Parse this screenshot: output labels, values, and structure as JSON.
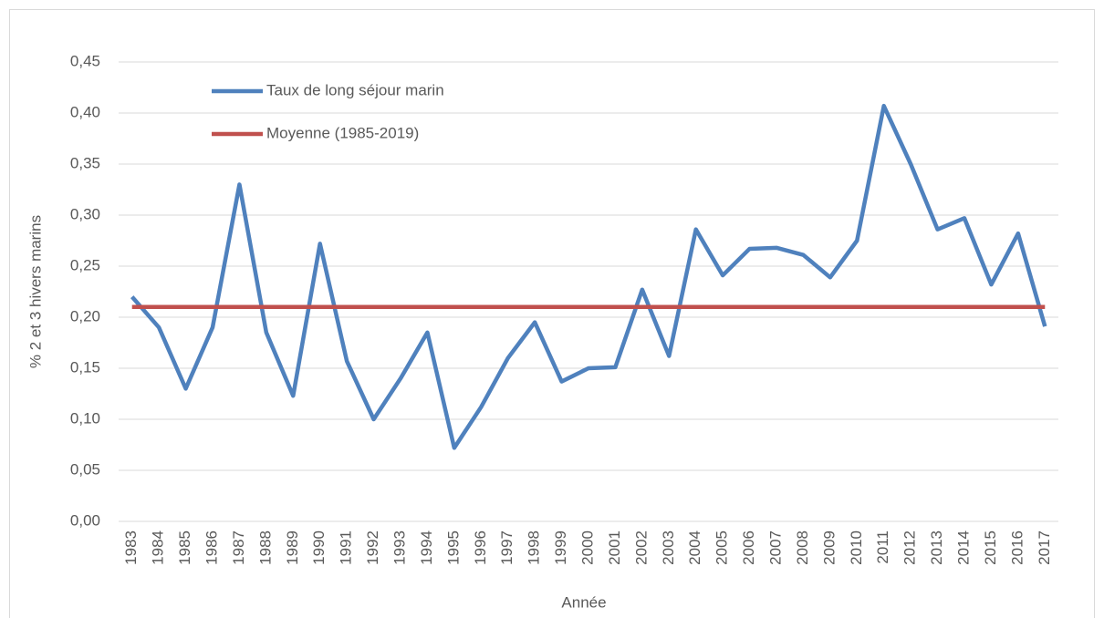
{
  "chart_data": {
    "type": "line",
    "y_label": "% 2 et 3 hivers marins",
    "x_label": "Année",
    "categories": [
      "1983",
      "1984",
      "1985",
      "1986",
      "1987",
      "1988",
      "1989",
      "1990",
      "1991",
      "1992",
      "1993",
      "1994",
      "1995",
      "1996",
      "1997",
      "1998",
      "1999",
      "2000",
      "2001",
      "2002",
      "2003",
      "2004",
      "2005",
      "2006",
      "2007",
      "2008",
      "2009",
      "2010",
      "2011",
      "2012",
      "2013",
      "2014",
      "2015",
      "2016",
      "2017"
    ],
    "series": [
      {
        "name": "Taux de long séjour marin",
        "color": "#4f81bd",
        "values": [
          0.22,
          0.19,
          0.13,
          0.19,
          0.33,
          0.185,
          0.123,
          0.272,
          0.157,
          0.1,
          0.14,
          0.185,
          0.072,
          0.112,
          0.16,
          0.195,
          0.137,
          0.15,
          0.151,
          0.227,
          0.162,
          0.286,
          0.241,
          0.267,
          0.268,
          0.261,
          0.239,
          0.275,
          0.407,
          0.35,
          0.286,
          0.297,
          0.232,
          0.282,
          0.191
        ]
      },
      {
        "name": "Moyenne (1985-2019)",
        "color": "#c0504d",
        "values": [
          0.21,
          0.21,
          0.21,
          0.21,
          0.21,
          0.21,
          0.21,
          0.21,
          0.21,
          0.21,
          0.21,
          0.21,
          0.21,
          0.21,
          0.21,
          0.21,
          0.21,
          0.21,
          0.21,
          0.21,
          0.21,
          0.21,
          0.21,
          0.21,
          0.21,
          0.21,
          0.21,
          0.21,
          0.21,
          0.21,
          0.21,
          0.21,
          0.21,
          0.21,
          0.21
        ]
      }
    ],
    "ylim": [
      0,
      0.45
    ],
    "yticks": [
      {
        "value": 0,
        "label": "0,00"
      },
      {
        "value": 0.05,
        "label": "0,05"
      },
      {
        "value": 0.1,
        "label": "0,10"
      },
      {
        "value": 0.15,
        "label": "0,15"
      },
      {
        "value": 0.2,
        "label": "0,20"
      },
      {
        "value": 0.25,
        "label": "0,25"
      },
      {
        "value": 0.3,
        "label": "0,30"
      },
      {
        "value": 0.35,
        "label": "0,35"
      },
      {
        "value": 0.4,
        "label": "0,40"
      },
      {
        "value": 0.45,
        "label": "0,45"
      }
    ],
    "grid": true,
    "legend": "upper left"
  }
}
